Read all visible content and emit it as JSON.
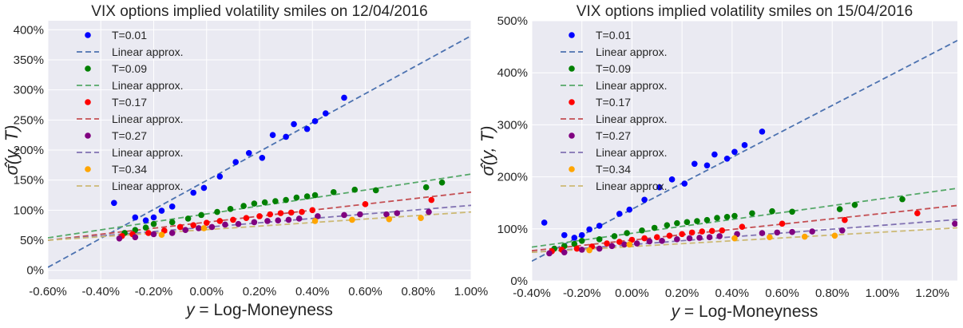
{
  "chart_data": [
    {
      "type": "scatter",
      "title": "VIX options implied volatility smiles on 12/04/2016",
      "xlabel": "y = Log-Moneyness",
      "ylabel": "σ̂(y, T)",
      "xlim": [
        -0.6,
        1.0
      ],
      "ylim": [
        -0.15,
        4.15
      ],
      "xticks": [
        -0.6,
        -0.4,
        -0.2,
        0.0,
        0.2,
        0.4,
        0.6,
        0.8,
        1.0
      ],
      "xtick_labels": [
        "-0.60%",
        "-0.40%",
        "-0.20%",
        "0.00%",
        "0.20%",
        "0.40%",
        "0.60%",
        "0.80%",
        "1.00%"
      ],
      "yticks": [
        0,
        0.5,
        1.0,
        1.5,
        2.0,
        2.5,
        3.0,
        3.5,
        4.0
      ],
      "ytick_labels": [
        "0%",
        "50%",
        "100%",
        "150%",
        "200%",
        "250%",
        "300%",
        "350%",
        "400%"
      ],
      "grid": true,
      "legend_position": "top-left",
      "series": [
        {
          "name": "T=0.01",
          "line_name": "Linear approx.",
          "color": "#0000ff",
          "line_color": "#4c72b0",
          "line": [
            [
              -0.6,
              0.05
            ],
            [
              1.0,
              3.9
            ]
          ],
          "points": [
            [
              -0.35,
              1.12
            ],
            [
              -0.27,
              0.88
            ],
            [
              -0.23,
              0.83
            ],
            [
              -0.2,
              0.88
            ],
            [
              -0.17,
              0.99
            ],
            [
              -0.13,
              1.06
            ],
            [
              -0.05,
              1.29
            ],
            [
              -0.01,
              1.37
            ],
            [
              0.05,
              1.56
            ],
            [
              0.11,
              1.8
            ],
            [
              0.16,
              1.95
            ],
            [
              0.21,
              1.87
            ],
            [
              0.25,
              2.25
            ],
            [
              0.3,
              2.22
            ],
            [
              0.33,
              2.43
            ],
            [
              0.38,
              2.35
            ],
            [
              0.41,
              2.48
            ],
            [
              0.45,
              2.61
            ],
            [
              0.52,
              2.87
            ]
          ]
        },
        {
          "name": "T=0.09",
          "line_name": "Linear approx.",
          "color": "#008000",
          "line_color": "#55a868",
          "line": [
            [
              -0.6,
              0.54
            ],
            [
              1.0,
              1.6
            ]
          ],
          "points": [
            [
              -0.31,
              0.62
            ],
            [
              -0.27,
              0.67
            ],
            [
              -0.23,
              0.71
            ],
            [
              -0.2,
              0.77
            ],
            [
              -0.13,
              0.8
            ],
            [
              -0.07,
              0.86
            ],
            [
              -0.02,
              0.92
            ],
            [
              0.04,
              0.97
            ],
            [
              0.09,
              1.02
            ],
            [
              0.14,
              1.07
            ],
            [
              0.18,
              1.11
            ],
            [
              0.22,
              1.13
            ],
            [
              0.26,
              1.15
            ],
            [
              0.3,
              1.17
            ],
            [
              0.34,
              1.21
            ],
            [
              0.38,
              1.23
            ],
            [
              0.41,
              1.25
            ],
            [
              0.48,
              1.3
            ],
            [
              0.56,
              1.34
            ],
            [
              0.64,
              1.33
            ],
            [
              0.83,
              1.38
            ],
            [
              0.89,
              1.46
            ]
          ]
        },
        {
          "name": "T=0.17",
          "line_name": "Linear approx.",
          "color": "#ff0000",
          "line_color": "#c44e52",
          "line": [
            [
              -0.6,
              0.5
            ],
            [
              1.0,
              1.3
            ]
          ],
          "points": [
            [
              -0.32,
              0.57
            ],
            [
              -0.28,
              0.6
            ],
            [
              -0.22,
              0.62
            ],
            [
              -0.16,
              0.66
            ],
            [
              -0.1,
              0.72
            ],
            [
              -0.05,
              0.75
            ],
            [
              0.0,
              0.79
            ],
            [
              0.05,
              0.82
            ],
            [
              0.1,
              0.84
            ],
            [
              0.15,
              0.87
            ],
            [
              0.2,
              0.9
            ],
            [
              0.24,
              0.93
            ],
            [
              0.28,
              0.95
            ],
            [
              0.32,
              0.96
            ],
            [
              0.36,
              0.97
            ],
            [
              0.4,
              1.0
            ],
            [
              0.6,
              1.1
            ],
            [
              0.85,
              1.17
            ]
          ]
        },
        {
          "name": "T=0.27",
          "line_name": "Linear approx.",
          "color": "#800080",
          "line_color": "#8172b2",
          "line": [
            [
              -0.6,
              0.5
            ],
            [
              1.0,
              1.08
            ]
          ],
          "points": [
            [
              -0.33,
              0.53
            ],
            [
              -0.27,
              0.55
            ],
            [
              -0.2,
              0.6
            ],
            [
              -0.13,
              0.62
            ],
            [
              -0.08,
              0.67
            ],
            [
              -0.03,
              0.7
            ],
            [
              0.02,
              0.72
            ],
            [
              0.07,
              0.76
            ],
            [
              0.12,
              0.77
            ],
            [
              0.18,
              0.8
            ],
            [
              0.23,
              0.82
            ],
            [
              0.27,
              0.83
            ],
            [
              0.31,
              0.84
            ],
            [
              0.35,
              0.86
            ],
            [
              0.42,
              0.9
            ],
            [
              0.52,
              0.92
            ],
            [
              0.58,
              0.93
            ],
            [
              0.68,
              0.93
            ],
            [
              0.72,
              0.95
            ],
            [
              0.84,
              0.97
            ]
          ]
        },
        {
          "name": "T=0.34",
          "line_name": "Linear approx.",
          "color": "#ffa500",
          "line_color": "#ccb974",
          "line": [
            [
              -0.6,
              0.5
            ],
            [
              1.0,
              0.97
            ]
          ],
          "points": [
            [
              -0.17,
              0.59
            ],
            [
              -0.01,
              0.7
            ],
            [
              0.41,
              0.82
            ],
            [
              0.55,
              0.84
            ],
            [
              0.69,
              0.85
            ],
            [
              0.81,
              0.87
            ]
          ]
        }
      ]
    },
    {
      "type": "scatter",
      "title": "VIX options implied volatility smiles on 15/04/2016",
      "xlabel": "y = Log-Moneyness",
      "ylabel": "σ̂(y, T)",
      "xlim": [
        -0.4,
        1.3
      ],
      "ylim": [
        0,
        5.0
      ],
      "xticks": [
        -0.4,
        -0.2,
        0.0,
        0.2,
        0.4,
        0.6,
        0.8,
        1.0,
        1.2
      ],
      "xtick_labels": [
        "-0.40%",
        "-0.20%",
        "0.00%",
        "0.20%",
        "0.40%",
        "0.60%",
        "0.80%",
        "1.00%",
        "1.20%"
      ],
      "yticks": [
        0,
        1.0,
        2.0,
        3.0,
        4.0,
        5.0
      ],
      "ytick_labels": [
        "0%",
        "100%",
        "200%",
        "300%",
        "400%",
        "500%"
      ],
      "grid": true,
      "legend_position": "top-left",
      "series": [
        {
          "name": "T=0.01",
          "line_name": "Linear approx.",
          "color": "#0000ff",
          "line_color": "#4c72b0",
          "line": [
            [
              -0.4,
              0.38
            ],
            [
              1.3,
              4.62
            ]
          ],
          "points": [
            [
              -0.35,
              1.12
            ],
            [
              -0.27,
              0.88
            ],
            [
              -0.23,
              0.83
            ],
            [
              -0.2,
              0.88
            ],
            [
              -0.17,
              0.99
            ],
            [
              -0.13,
              1.06
            ],
            [
              -0.05,
              1.29
            ],
            [
              -0.01,
              1.37
            ],
            [
              0.05,
              1.56
            ],
            [
              0.11,
              1.8
            ],
            [
              0.16,
              1.95
            ],
            [
              0.21,
              1.87
            ],
            [
              0.25,
              2.25
            ],
            [
              0.3,
              2.22
            ],
            [
              0.33,
              2.43
            ],
            [
              0.38,
              2.35
            ],
            [
              0.41,
              2.48
            ],
            [
              0.45,
              2.61
            ],
            [
              0.52,
              2.87
            ]
          ]
        },
        {
          "name": "T=0.09",
          "line_name": "Linear approx.",
          "color": "#008000",
          "line_color": "#55a868",
          "line": [
            [
              -0.4,
              0.65
            ],
            [
              1.3,
              1.78
            ]
          ],
          "points": [
            [
              -0.31,
              0.62
            ],
            [
              -0.27,
              0.67
            ],
            [
              -0.23,
              0.71
            ],
            [
              -0.2,
              0.77
            ],
            [
              -0.13,
              0.8
            ],
            [
              -0.07,
              0.86
            ],
            [
              -0.02,
              0.92
            ],
            [
              0.04,
              0.97
            ],
            [
              0.09,
              1.02
            ],
            [
              0.14,
              1.07
            ],
            [
              0.18,
              1.11
            ],
            [
              0.22,
              1.13
            ],
            [
              0.26,
              1.15
            ],
            [
              0.3,
              1.17
            ],
            [
              0.34,
              1.21
            ],
            [
              0.38,
              1.23
            ],
            [
              0.41,
              1.25
            ],
            [
              0.48,
              1.3
            ],
            [
              0.56,
              1.34
            ],
            [
              0.64,
              1.33
            ],
            [
              0.83,
              1.38
            ],
            [
              0.89,
              1.46
            ],
            [
              1.08,
              1.57
            ]
          ]
        },
        {
          "name": "T=0.17",
          "line_name": "Linear approx.",
          "color": "#ff0000",
          "line_color": "#c44e52",
          "line": [
            [
              -0.4,
              0.58
            ],
            [
              1.3,
              1.45
            ]
          ],
          "points": [
            [
              -0.32,
              0.57
            ],
            [
              -0.28,
              0.6
            ],
            [
              -0.22,
              0.62
            ],
            [
              -0.16,
              0.66
            ],
            [
              -0.1,
              0.72
            ],
            [
              -0.05,
              0.75
            ],
            [
              0.0,
              0.79
            ],
            [
              0.05,
              0.82
            ],
            [
              0.1,
              0.84
            ],
            [
              0.15,
              0.87
            ],
            [
              0.2,
              0.9
            ],
            [
              0.24,
              0.93
            ],
            [
              0.28,
              0.95
            ],
            [
              0.32,
              0.96
            ],
            [
              0.36,
              0.97
            ],
            [
              0.44,
              1.04
            ],
            [
              0.6,
              1.1
            ],
            [
              0.85,
              1.17
            ],
            [
              1.14,
              1.3
            ]
          ]
        },
        {
          "name": "T=0.27",
          "line_name": "Linear approx.",
          "color": "#800080",
          "line_color": "#8172b2",
          "line": [
            [
              -0.4,
              0.55
            ],
            [
              1.3,
              1.18
            ]
          ],
          "points": [
            [
              -0.33,
              0.53
            ],
            [
              -0.27,
              0.55
            ],
            [
              -0.2,
              0.6
            ],
            [
              -0.13,
              0.62
            ],
            [
              -0.08,
              0.67
            ],
            [
              -0.03,
              0.7
            ],
            [
              0.02,
              0.72
            ],
            [
              0.07,
              0.76
            ],
            [
              0.12,
              0.77
            ],
            [
              0.18,
              0.8
            ],
            [
              0.23,
              0.82
            ],
            [
              0.27,
              0.83
            ],
            [
              0.31,
              0.84
            ],
            [
              0.35,
              0.86
            ],
            [
              0.42,
              0.9
            ],
            [
              0.52,
              0.92
            ],
            [
              0.58,
              0.93
            ],
            [
              0.64,
              0.94
            ],
            [
              0.72,
              0.95
            ],
            [
              0.84,
              0.97
            ],
            [
              1.29,
              1.1
            ]
          ]
        },
        {
          "name": "T=0.34",
          "line_name": "Linear approx.",
          "color": "#ffa500",
          "line_color": "#ccb974",
          "line": [
            [
              -0.4,
              0.55
            ],
            [
              1.3,
              1.02
            ]
          ],
          "points": [
            [
              -0.17,
              0.59
            ],
            [
              -0.01,
              0.7
            ],
            [
              0.41,
              0.82
            ],
            [
              0.55,
              0.84
            ],
            [
              0.69,
              0.85
            ],
            [
              0.81,
              0.87
            ]
          ]
        }
      ]
    }
  ]
}
